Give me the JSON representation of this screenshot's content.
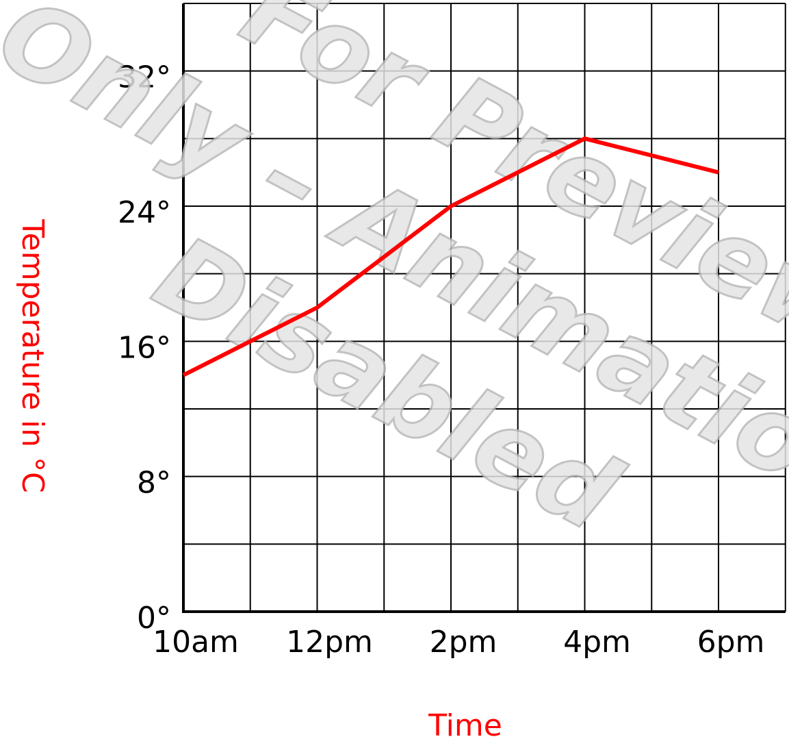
{
  "chart_data": {
    "type": "line",
    "categories": [
      "10am",
      null,
      "12pm",
      null,
      "2pm",
      null,
      "4pm",
      null,
      "6pm"
    ],
    "series": [
      {
        "name": "Temperature",
        "color": "#ff0000",
        "values": [
          14,
          16,
          18,
          21,
          24,
          26,
          28,
          27,
          26
        ]
      }
    ],
    "ylim": [
      0,
      36
    ],
    "yticks": [
      {
        "value": 0,
        "label": "0°"
      },
      {
        "value": 8,
        "label": "8°"
      },
      {
        "value": 16,
        "label": "16°"
      },
      {
        "value": 24,
        "label": "24°"
      },
      {
        "value": 32,
        "label": "32°"
      }
    ],
    "minor_yticks": [
      4,
      12,
      20,
      28,
      36
    ],
    "grid": true,
    "xlabel": "Time",
    "ylabel": "Temperature in °C",
    "watermark": [
      "For Preview",
      "Only – Animation",
      "Disabled"
    ]
  }
}
